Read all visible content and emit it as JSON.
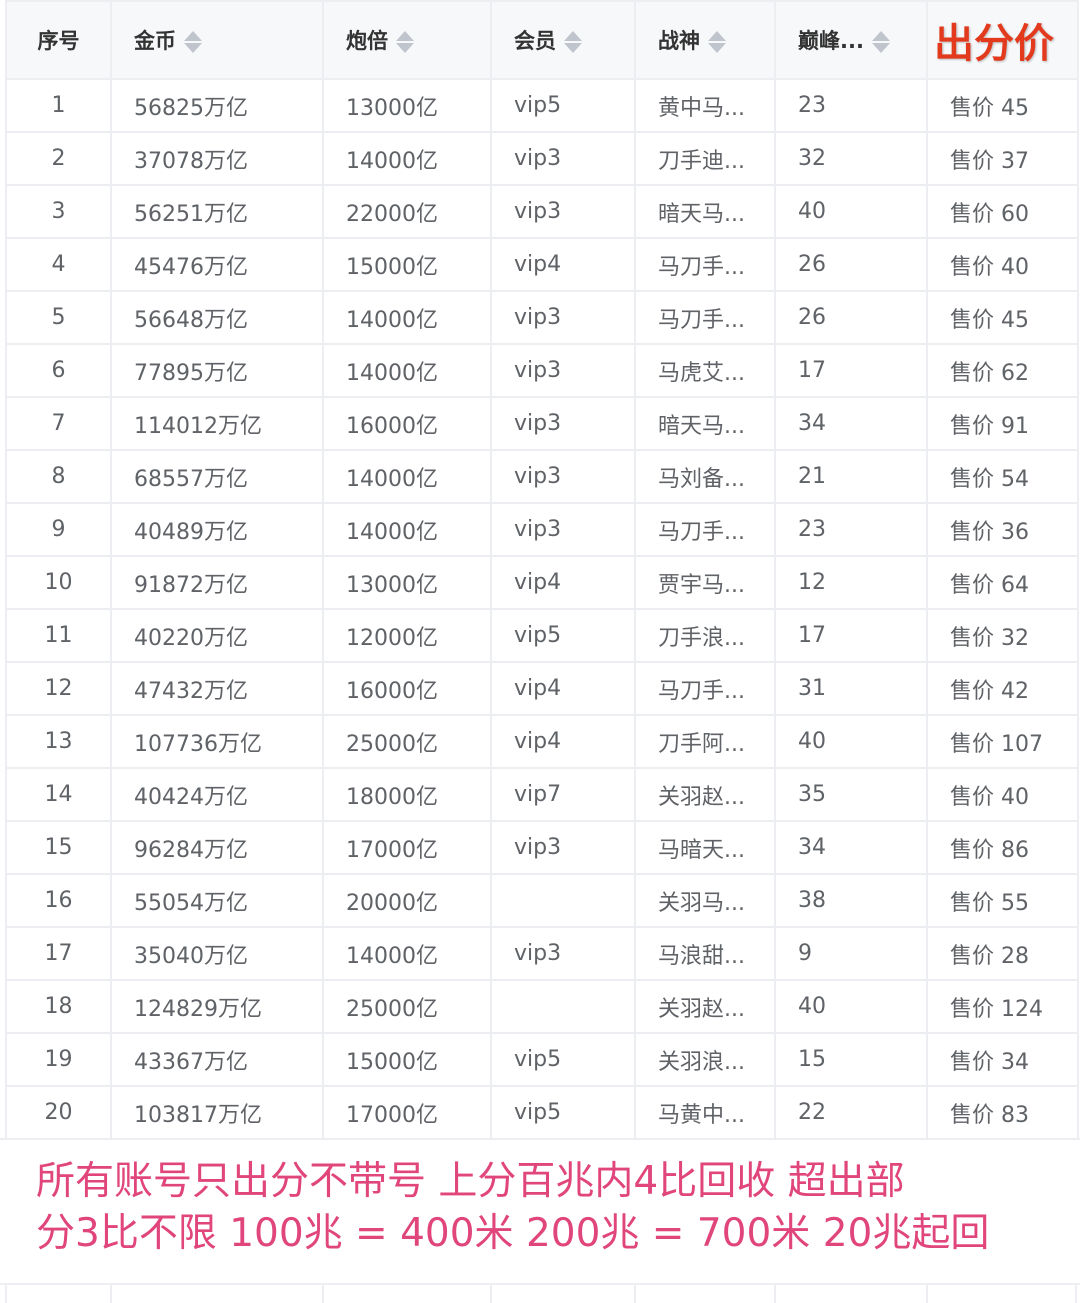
{
  "table": {
    "headers": [
      "序号",
      "金币",
      "炮倍",
      "会员",
      "战神",
      "巅峰...",
      "出分价"
    ],
    "sortable": [
      false,
      true,
      true,
      true,
      true,
      true,
      false
    ],
    "rows": [
      [
        "1",
        "56825万亿",
        "13000亿",
        "vip5",
        "黄中马...",
        "23",
        "售价 45"
      ],
      [
        "2",
        "37078万亿",
        "14000亿",
        "vip3",
        "刀手迪...",
        "32",
        "售价 37"
      ],
      [
        "3",
        "56251万亿",
        "22000亿",
        "vip3",
        "暗天马...",
        "40",
        "售价 60"
      ],
      [
        "4",
        "45476万亿",
        "15000亿",
        "vip4",
        "马刀手...",
        "26",
        "售价 40"
      ],
      [
        "5",
        "56648万亿",
        "14000亿",
        "vip3",
        "马刀手...",
        "26",
        "售价 45"
      ],
      [
        "6",
        "77895万亿",
        "14000亿",
        "vip3",
        "马虎艾...",
        "17",
        "售价 62"
      ],
      [
        "7",
        "114012万亿",
        "16000亿",
        "vip3",
        "暗天马...",
        "34",
        "售价 91"
      ],
      [
        "8",
        "68557万亿",
        "14000亿",
        "vip3",
        "马刘备...",
        "21",
        "售价 54"
      ],
      [
        "9",
        "40489万亿",
        "14000亿",
        "vip3",
        "马刀手...",
        "23",
        "售价 36"
      ],
      [
        "10",
        "91872万亿",
        "13000亿",
        "vip4",
        "贾宇马...",
        "12",
        "售价 64"
      ],
      [
        "11",
        "40220万亿",
        "12000亿",
        "vip5",
        "刀手浪...",
        "17",
        "售价 32"
      ],
      [
        "12",
        "47432万亿",
        "16000亿",
        "vip4",
        "马刀手...",
        "31",
        "售价 42"
      ],
      [
        "13",
        "107736万亿",
        "25000亿",
        "vip4",
        "刀手阿...",
        "40",
        "售价 107"
      ],
      [
        "14",
        "40424万亿",
        "18000亿",
        "vip7",
        "关羽赵...",
        "35",
        "售价 40"
      ],
      [
        "15",
        "96284万亿",
        "17000亿",
        "vip3",
        "马暗天...",
        "34",
        "售价 86"
      ],
      [
        "16",
        "55054万亿",
        "20000亿",
        "",
        "关羽马...",
        "38",
        "售价 55"
      ],
      [
        "17",
        "35040万亿",
        "14000亿",
        "vip3",
        "马浪甜...",
        "9",
        "售价 28"
      ],
      [
        "18",
        "124829万亿",
        "25000亿",
        "",
        "关羽赵...",
        "40",
        "售价 124"
      ],
      [
        "19",
        "43367万亿",
        "15000亿",
        "vip5",
        "关羽浪...",
        "15",
        "售价 34"
      ],
      [
        "20",
        "103817万亿",
        "17000亿",
        "vip5",
        "马黄中...",
        "22",
        "售价 83"
      ]
    ]
  },
  "notice": {
    "line1": "所有账号只出分不带号 上分百兆内4比回收 超出部",
    "line2": "分3比不限 100兆 = 400米 200兆 = 700米 20兆起回"
  },
  "colors": {
    "price_header": "#e33a1d",
    "notice_text": "#e0457b",
    "header_bg": "#f7f8fa",
    "border": "#eceef1"
  }
}
